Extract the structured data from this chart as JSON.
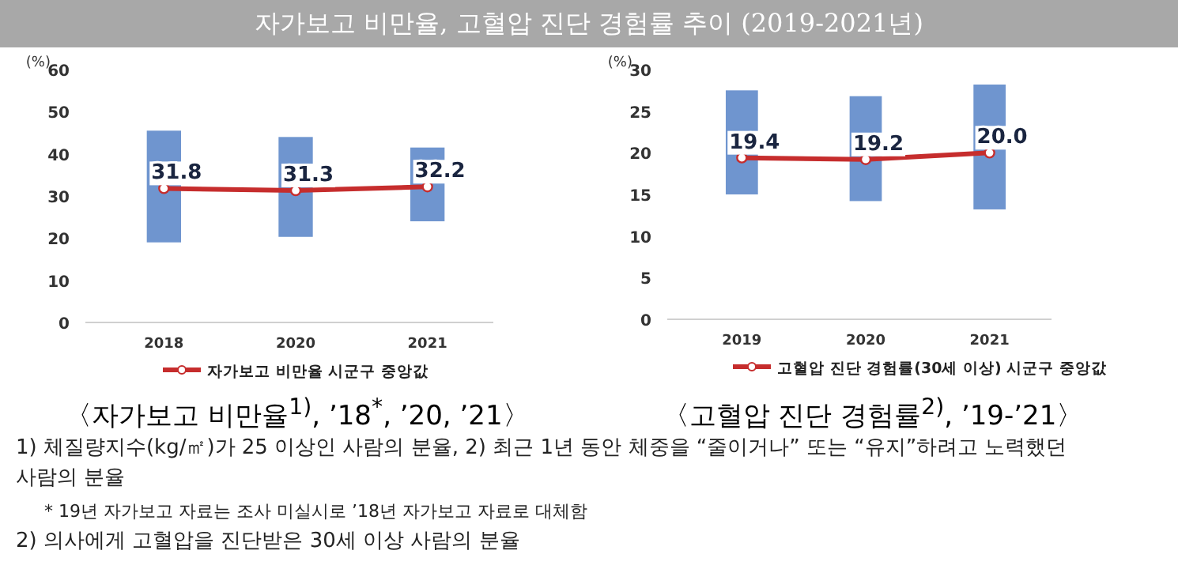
{
  "chart_data": [
    {
      "type": "bar",
      "title": "〈자가보고 비만율$^{1)}$, ’18$^{*}$, ’20, ’21〉",
      "ylabel": "(%)",
      "categories": [
        "2018",
        "2020",
        "2021"
      ],
      "ylim": [
        0,
        60
      ],
      "yticks": [
        0,
        10,
        20,
        30,
        40,
        50,
        60
      ],
      "grid": false,
      "legend": "bottom",
      "series": [
        {
          "color": "#6f95cf",
          "base": [
            19,
            20.3,
            24
          ],
          "values": [
            26.5,
            23.7,
            17.5
          ]
        },
        {
          "type": "line",
          "name": "자가보고 비만율 시군구 중앙값",
          "color": "#c62d2d",
          "marker": "circle",
          "values": [
            31.8,
            31.3,
            32.2
          ],
          "value_labels": [
            "31.8",
            "31.3",
            "32.2"
          ]
        }
      ],
      "annotations": [
        "자가보고 비만율, 고혈압 진단 경험률 추이 (2019-2021년)",
        "1)  체질량지수(kg/㎡)가 25 이상인 사람의 분율, 2) 최근 1년 동안 체중을 “줄이거나” 또는 “유지”하려고 노력했던 사람의 분율",
        "* 19년 자가보고 자료는 조사 미실시로 ’18년 자가보고 자료로 대체함",
        "2)  의사에게 고혈압을 진단받은 30세 이상 사람의 분율"
      ]
    },
    {
      "type": "bar",
      "title": "〈고혈압 진단 경험률$^{2)}$, ’19-’21〉",
      "ylabel": "(%)",
      "categories": [
        "2019",
        "2020",
        "2021"
      ],
      "ylim": [
        0,
        30
      ],
      "yticks": [
        0,
        5,
        10,
        15,
        20,
        25,
        30
      ],
      "grid": false,
      "legend": "bottom",
      "series": [
        {
          "color": "#6f95cf",
          "base": [
            15,
            14.2,
            13.2
          ],
          "values": [
            12.5,
            12.6,
            15.0
          ]
        },
        {
          "type": "line",
          "name": "고혈압 진단 경험률(30세 이상) 시군구 중앙값",
          "color": "#c62d2d",
          "marker": "circle",
          "values": [
            19.4,
            19.2,
            20.0
          ],
          "value_labels": [
            "19.4",
            "19.2",
            "20.0"
          ]
        }
      ]
    }
  ]
}
